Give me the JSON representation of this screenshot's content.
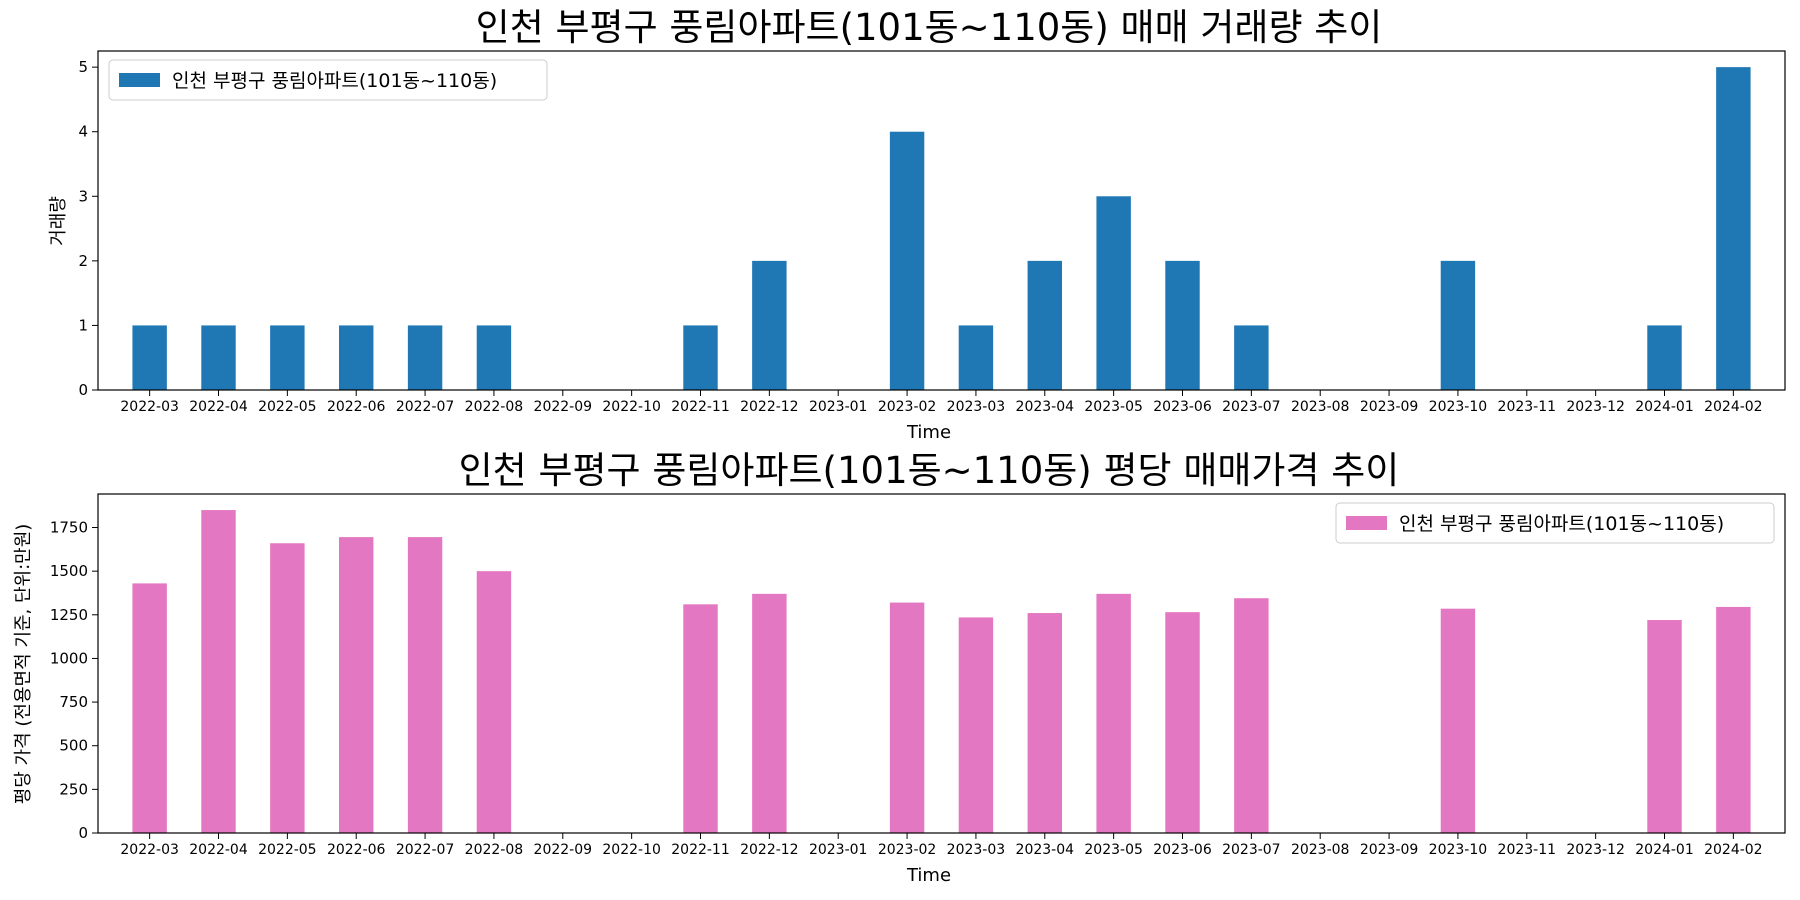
{
  "chart_data": [
    {
      "type": "bar",
      "title": "인천 부평구 풍림아파트(101동~110동) 매매 거래량 추이",
      "xlabel": "Time",
      "ylabel": "거래량",
      "categories": [
        "2022-03",
        "2022-04",
        "2022-05",
        "2022-06",
        "2022-07",
        "2022-08",
        "2022-09",
        "2022-10",
        "2022-11",
        "2022-12",
        "2023-01",
        "2023-02",
        "2023-03",
        "2023-04",
        "2023-05",
        "2023-06",
        "2023-07",
        "2023-08",
        "2023-09",
        "2023-10",
        "2023-11",
        "2023-12",
        "2024-01",
        "2024-02"
      ],
      "series": [
        {
          "name": "인천 부평구 풍림아파트(101동~110동)",
          "color": "#1f77b4",
          "values": [
            1,
            1,
            1,
            1,
            1,
            1,
            0,
            0,
            1,
            2,
            0,
            4,
            1,
            2,
            3,
            2,
            1,
            0,
            0,
            2,
            0,
            0,
            1,
            5
          ]
        }
      ],
      "ylim": [
        0,
        5.25
      ],
      "yticks": [
        0,
        1,
        2,
        3,
        4,
        5
      ],
      "legend_position": "upper-left",
      "grid": false
    },
    {
      "type": "bar",
      "title": "인천 부평구 풍림아파트(101동~110동) 평당 매매가격 추이",
      "xlabel": "Time",
      "ylabel": "평당 가격 (전용면적 기준, 단위:만원)",
      "categories": [
        "2022-03",
        "2022-04",
        "2022-05",
        "2022-06",
        "2022-07",
        "2022-08",
        "2022-09",
        "2022-10",
        "2022-11",
        "2022-12",
        "2023-01",
        "2023-02",
        "2023-03",
        "2023-04",
        "2023-05",
        "2023-06",
        "2023-07",
        "2023-08",
        "2023-09",
        "2023-10",
        "2023-11",
        "2023-12",
        "2024-01",
        "2024-02"
      ],
      "series": [
        {
          "name": "인천 부평구 풍림아파트(101동~110동)",
          "color": "#e377c2",
          "values": [
            1430,
            1850,
            1660,
            1695,
            1695,
            1500,
            0,
            0,
            1310,
            1370,
            0,
            1320,
            1235,
            1260,
            1370,
            1265,
            1345,
            0,
            0,
            1285,
            0,
            0,
            1220,
            1295
          ]
        }
      ],
      "ylim": [
        0,
        1942
      ],
      "yticks": [
        0,
        250,
        500,
        750,
        1000,
        1250,
        1500,
        1750
      ],
      "legend_position": "upper-right",
      "grid": false
    }
  ]
}
